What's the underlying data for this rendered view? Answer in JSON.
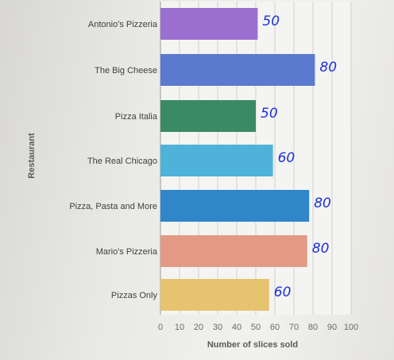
{
  "chart_data": {
    "type": "bar",
    "orientation": "horizontal",
    "categories": [
      "Antonio's Pizzeria",
      "The Big Cheese",
      "Pizza Italia",
      "The Real Chicago",
      "Pizza, Pasta and More",
      "Mario's Pizzeria",
      "Pizzas Only"
    ],
    "values": [
      51,
      81,
      50,
      59,
      78,
      77,
      57
    ],
    "colors": [
      "#9a6fcf",
      "#5b79cf",
      "#3a8a63",
      "#4fb3d9",
      "#2f87c9",
      "#e39a84",
      "#e6c46f"
    ],
    "xlabel": "Number of slices sold",
    "ylabel": "Restaurant",
    "xlim": [
      0,
      100
    ],
    "xticks": [
      0,
      10,
      20,
      30,
      40,
      50,
      60,
      70,
      80,
      90,
      100
    ],
    "grid": "vertical",
    "annotations": [
      "50",
      "80",
      "50",
      "60",
      "80",
      "80",
      "60"
    ]
  }
}
